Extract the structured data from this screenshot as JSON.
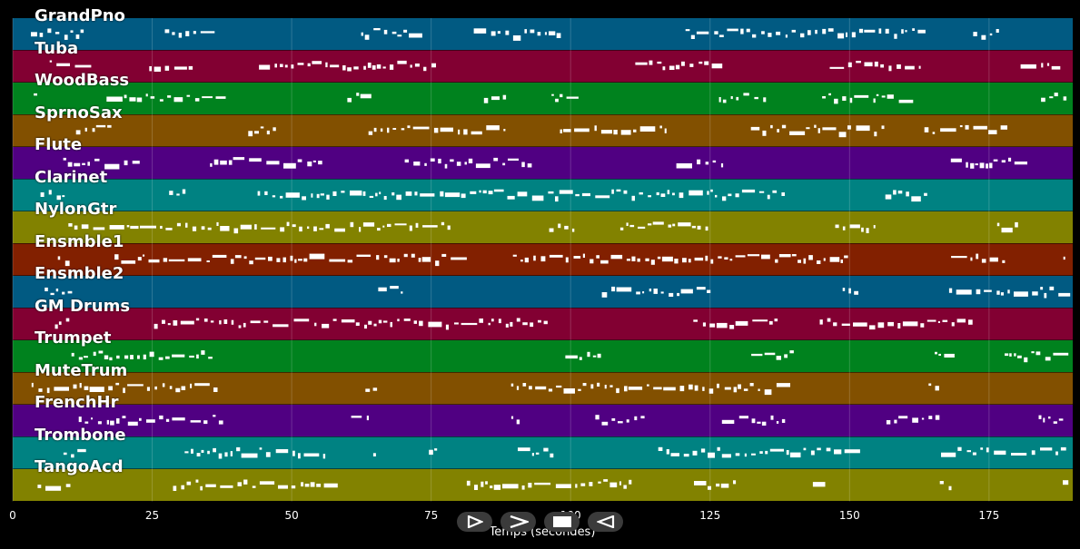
{
  "xaxis": {
    "label": "Temps (secondes)",
    "min": 0,
    "max": 190,
    "ticks": [
      0,
      25,
      50,
      75,
      100,
      125,
      150,
      175
    ]
  },
  "tracks": [
    {
      "name": "GrandPno",
      "color": "#015a82"
    },
    {
      "name": "Tuba",
      "color": "#820032"
    },
    {
      "name": "WoodBass",
      "color": "#00821e"
    },
    {
      "name": "SprnoSax",
      "color": "#825000"
    },
    {
      "name": "Flute",
      "color": "#500082"
    },
    {
      "name": "Clarinet",
      "color": "#008282"
    },
    {
      "name": "NylonGtr",
      "color": "#828200"
    },
    {
      "name": "Ensmble1",
      "color": "#822000"
    },
    {
      "name": "Ensmble2",
      "color": "#015a82"
    },
    {
      "name": "GM Drums",
      "color": "#820032"
    },
    {
      "name": "Trumpet",
      "color": "#00821e"
    },
    {
      "name": "MuteTrum",
      "color": "#825000"
    },
    {
      "name": "FrenchHr",
      "color": "#500082"
    },
    {
      "name": "Trombone",
      "color": "#008282"
    },
    {
      "name": "TangoAcd",
      "color": "#828200"
    }
  ],
  "controls": [
    {
      "name": "play-icon"
    },
    {
      "name": "forward-icon"
    },
    {
      "name": "stop-icon"
    },
    {
      "name": "rewind-icon"
    }
  ]
}
